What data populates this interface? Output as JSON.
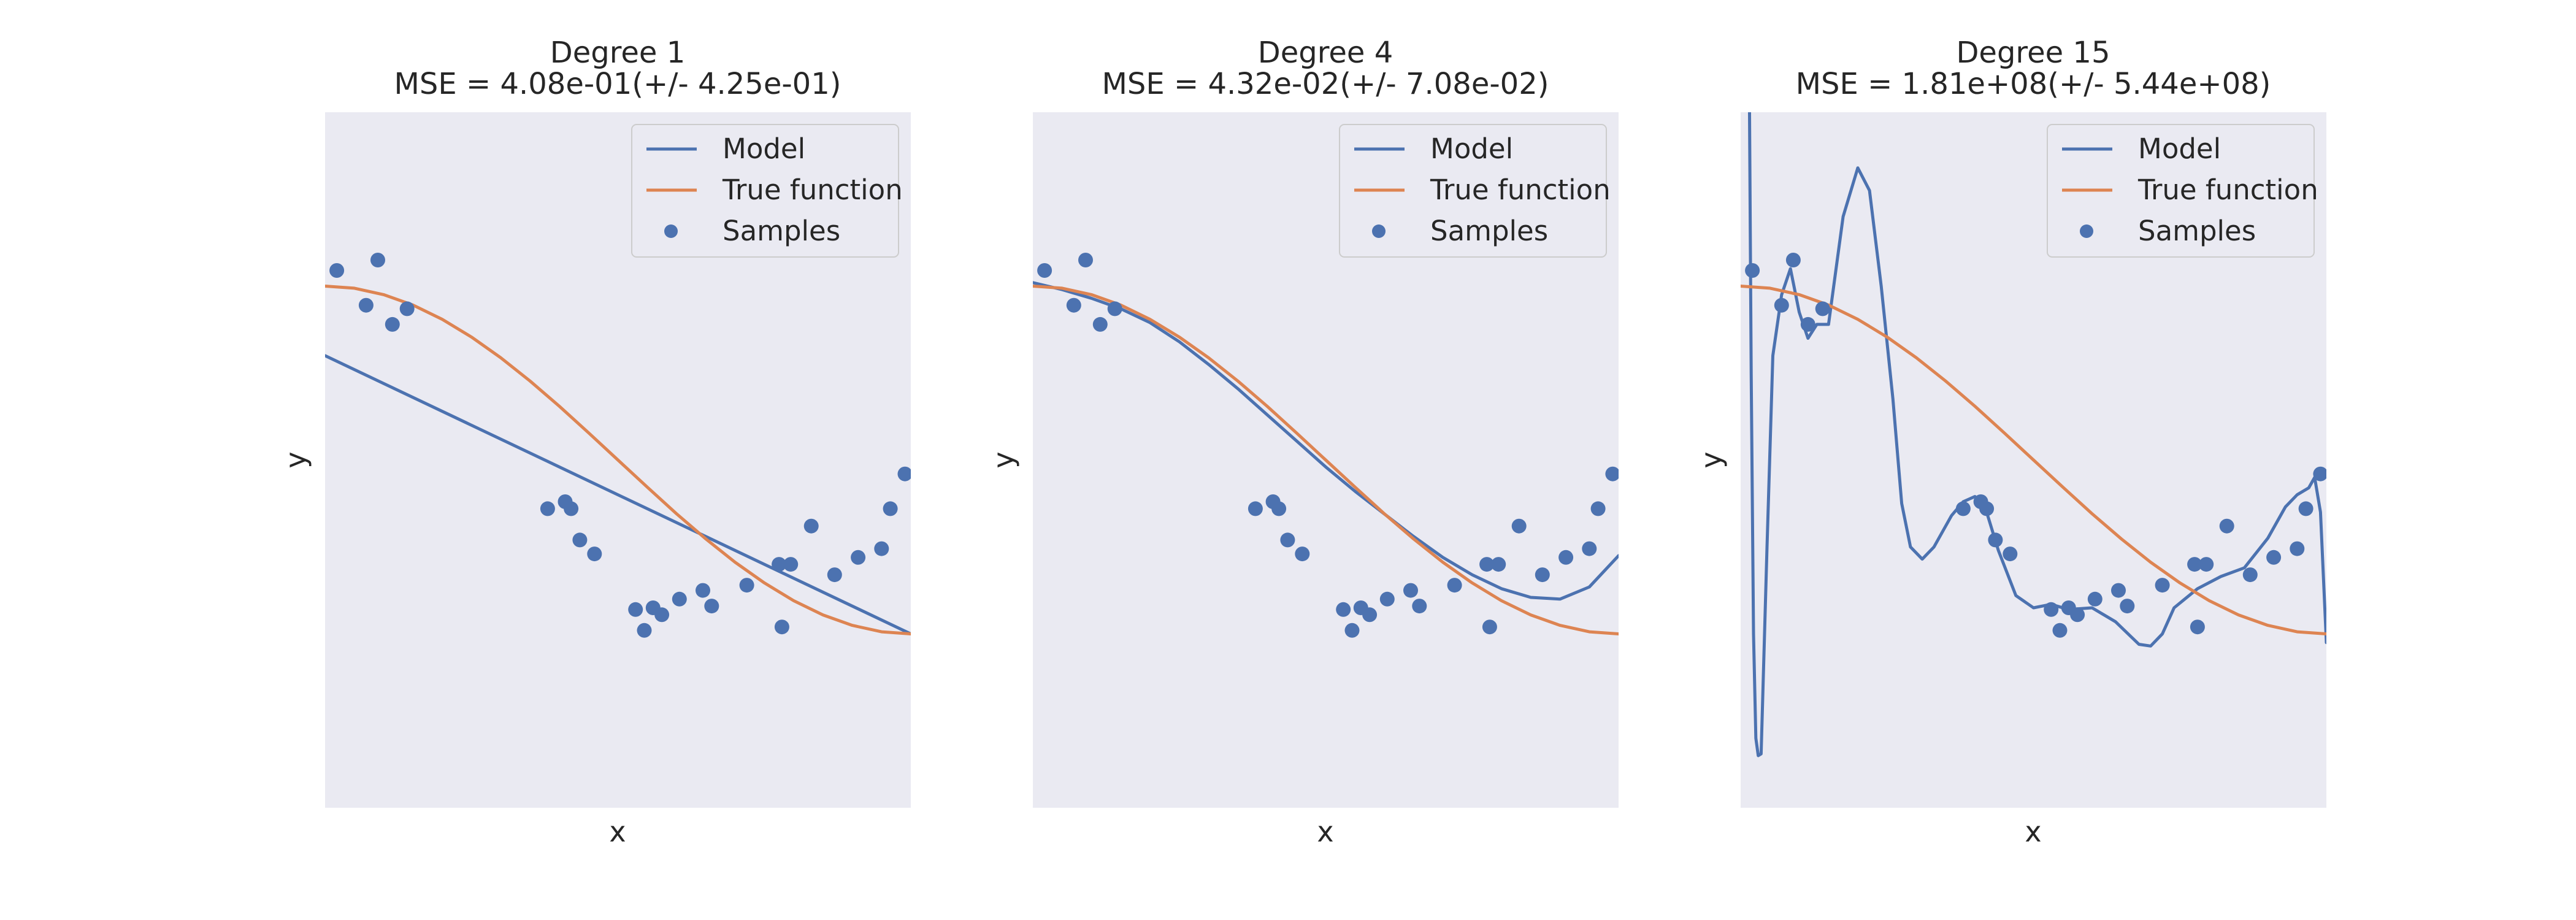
{
  "figure": {
    "background": "#ffffff",
    "plot_background": "#eaeaf2",
    "model_color": "#4c72b0",
    "true_color": "#dd8452",
    "sample_color": "#4c72b0",
    "legend_background": "#eaeaf2",
    "legend_border": "#cccccc"
  },
  "chart_data": [
    {
      "type": "line",
      "title_line1": "Degree 1",
      "title_line2": "MSE = 4.08e-01(+/- 4.25e-01)",
      "xlabel": "x",
      "ylabel": "y",
      "xlim": [
        0,
        1
      ],
      "ylim": [
        -2,
        2
      ],
      "grid": false,
      "legend": {
        "placement": "top-right",
        "entries": [
          "Model",
          "True function",
          "Samples"
        ]
      },
      "series": [
        {
          "name": "Model",
          "kind": "line",
          "x": [
            0.0,
            1.0
          ],
          "y": [
            0.6,
            -1.0
          ]
        },
        {
          "name": "True function",
          "kind": "line",
          "x": [
            0.0,
            0.05,
            0.1,
            0.15,
            0.2,
            0.25,
            0.3,
            0.35,
            0.4,
            0.45,
            0.5,
            0.55,
            0.6,
            0.65,
            0.7,
            0.75,
            0.8,
            0.85,
            0.9,
            0.95,
            1.0
          ],
          "y": [
            1.0,
            0.988,
            0.951,
            0.891,
            0.809,
            0.707,
            0.588,
            0.454,
            0.309,
            0.156,
            0.0,
            -0.156,
            -0.309,
            -0.454,
            -0.588,
            -0.707,
            -0.809,
            -0.891,
            -0.951,
            -0.988,
            -1.0
          ]
        },
        {
          "name": "Samples",
          "kind": "scatter",
          "x": [
            0.02,
            0.07,
            0.09,
            0.115,
            0.14,
            0.38,
            0.41,
            0.42,
            0.435,
            0.46,
            0.53,
            0.545,
            0.56,
            0.575,
            0.605,
            0.645,
            0.66,
            0.72,
            0.775,
            0.78,
            0.795,
            0.83,
            0.87,
            0.91,
            0.95,
            0.965,
            0.99
          ],
          "y": [
            1.09,
            0.89,
            1.15,
            0.78,
            0.87,
            -0.28,
            -0.24,
            -0.28,
            -0.46,
            -0.54,
            -0.86,
            -0.98,
            -0.85,
            -0.89,
            -0.8,
            -0.75,
            -0.84,
            -0.72,
            -0.6,
            -0.96,
            -0.6,
            -0.38,
            -0.66,
            -0.56,
            -0.51,
            -0.28,
            -0.08
          ]
        }
      ]
    },
    {
      "type": "line",
      "title_line1": "Degree 4",
      "title_line2": "MSE = 4.32e-02(+/- 7.08e-02)",
      "xlabel": "x",
      "ylabel": "y",
      "xlim": [
        0,
        1
      ],
      "ylim": [
        -2,
        2
      ],
      "grid": false,
      "legend": {
        "placement": "top-right",
        "entries": [
          "Model",
          "True function",
          "Samples"
        ]
      },
      "series": [
        {
          "name": "Model",
          "kind": "line",
          "x": [
            0.0,
            0.05,
            0.1,
            0.15,
            0.2,
            0.25,
            0.3,
            0.35,
            0.4,
            0.45,
            0.5,
            0.55,
            0.6,
            0.65,
            0.7,
            0.75,
            0.8,
            0.85,
            0.9,
            0.95,
            1.0
          ],
          "y": [
            1.02,
            0.98,
            0.93,
            0.87,
            0.79,
            0.68,
            0.55,
            0.41,
            0.26,
            0.11,
            -0.04,
            -0.18,
            -0.31,
            -0.44,
            -0.56,
            -0.66,
            -0.74,
            -0.79,
            -0.8,
            -0.73,
            -0.55
          ]
        },
        {
          "name": "True function",
          "kind": "line",
          "x": [
            0.0,
            0.05,
            0.1,
            0.15,
            0.2,
            0.25,
            0.3,
            0.35,
            0.4,
            0.45,
            0.5,
            0.55,
            0.6,
            0.65,
            0.7,
            0.75,
            0.8,
            0.85,
            0.9,
            0.95,
            1.0
          ],
          "y": [
            1.0,
            0.988,
            0.951,
            0.891,
            0.809,
            0.707,
            0.588,
            0.454,
            0.309,
            0.156,
            0.0,
            -0.156,
            -0.309,
            -0.454,
            -0.588,
            -0.707,
            -0.809,
            -0.891,
            -0.951,
            -0.988,
            -1.0
          ]
        },
        {
          "name": "Samples",
          "kind": "scatter",
          "x": [
            0.02,
            0.07,
            0.09,
            0.115,
            0.14,
            0.38,
            0.41,
            0.42,
            0.435,
            0.46,
            0.53,
            0.545,
            0.56,
            0.575,
            0.605,
            0.645,
            0.66,
            0.72,
            0.775,
            0.78,
            0.795,
            0.83,
            0.87,
            0.91,
            0.95,
            0.965,
            0.99
          ],
          "y": [
            1.09,
            0.89,
            1.15,
            0.78,
            0.87,
            -0.28,
            -0.24,
            -0.28,
            -0.46,
            -0.54,
            -0.86,
            -0.98,
            -0.85,
            -0.89,
            -0.8,
            -0.75,
            -0.84,
            -0.72,
            -0.6,
            -0.96,
            -0.6,
            -0.38,
            -0.66,
            -0.56,
            -0.51,
            -0.28,
            -0.08
          ]
        }
      ]
    },
    {
      "type": "line",
      "title_line1": "Degree 15",
      "title_line2": "MSE = 1.81e+08(+/- 5.44e+08)",
      "xlabel": "x",
      "ylabel": "y",
      "xlim": [
        0,
        1
      ],
      "ylim": [
        -2,
        2
      ],
      "grid": false,
      "legend": {
        "placement": "top-right",
        "entries": [
          "Model",
          "True function",
          "Samples"
        ]
      },
      "series": [
        {
          "name": "Model",
          "kind": "line",
          "x": [
            0.015,
            0.018,
            0.022,
            0.026,
            0.03,
            0.035,
            0.045,
            0.055,
            0.07,
            0.085,
            0.1,
            0.115,
            0.13,
            0.15,
            0.175,
            0.2,
            0.22,
            0.24,
            0.26,
            0.275,
            0.29,
            0.31,
            0.33,
            0.36,
            0.38,
            0.4,
            0.42,
            0.44,
            0.47,
            0.5,
            0.53,
            0.56,
            0.6,
            0.64,
            0.68,
            0.7,
            0.72,
            0.74,
            0.78,
            0.82,
            0.86,
            0.9,
            0.93,
            0.95,
            0.97,
            0.98,
            0.99,
            1.0
          ],
          "y": [
            2.1,
            0.5,
            -1.0,
            -1.6,
            -1.7,
            -1.69,
            -0.5,
            0.6,
            0.95,
            1.1,
            0.85,
            0.7,
            0.78,
            0.78,
            1.4,
            1.68,
            1.55,
            1.0,
            0.35,
            -0.25,
            -0.5,
            -0.57,
            -0.5,
            -0.32,
            -0.24,
            -0.21,
            -0.3,
            -0.52,
            -0.78,
            -0.85,
            -0.83,
            -0.86,
            -0.85,
            -0.93,
            -1.06,
            -1.07,
            -1.0,
            -0.85,
            -0.74,
            -0.67,
            -0.62,
            -0.45,
            -0.27,
            -0.2,
            -0.16,
            -0.1,
            -0.3,
            -1.05
          ]
        },
        {
          "name": "True function",
          "kind": "line",
          "x": [
            0.0,
            0.05,
            0.1,
            0.15,
            0.2,
            0.25,
            0.3,
            0.35,
            0.4,
            0.45,
            0.5,
            0.55,
            0.6,
            0.65,
            0.7,
            0.75,
            0.8,
            0.85,
            0.9,
            0.95,
            1.0
          ],
          "y": [
            1.0,
            0.988,
            0.951,
            0.891,
            0.809,
            0.707,
            0.588,
            0.454,
            0.309,
            0.156,
            0.0,
            -0.156,
            -0.309,
            -0.454,
            -0.588,
            -0.707,
            -0.809,
            -0.891,
            -0.951,
            -0.988,
            -1.0
          ]
        },
        {
          "name": "Samples",
          "kind": "scatter",
          "x": [
            0.02,
            0.07,
            0.09,
            0.115,
            0.14,
            0.38,
            0.41,
            0.42,
            0.435,
            0.46,
            0.53,
            0.545,
            0.56,
            0.575,
            0.605,
            0.645,
            0.66,
            0.72,
            0.775,
            0.78,
            0.795,
            0.83,
            0.87,
            0.91,
            0.95,
            0.965,
            0.99
          ],
          "y": [
            1.09,
            0.89,
            1.15,
            0.78,
            0.87,
            -0.28,
            -0.24,
            -0.28,
            -0.46,
            -0.54,
            -0.86,
            -0.98,
            -0.85,
            -0.89,
            -0.8,
            -0.75,
            -0.84,
            -0.72,
            -0.6,
            -0.96,
            -0.6,
            -0.38,
            -0.66,
            -0.56,
            -0.51,
            -0.28,
            -0.08
          ]
        }
      ]
    }
  ]
}
